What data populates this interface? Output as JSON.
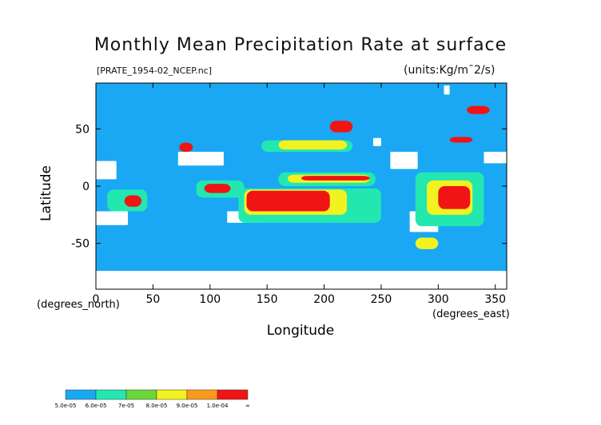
{
  "chart_data": {
    "type": "heatmap",
    "title": "Monthly Mean Precipitation Rate at surface",
    "subtitle_file": "[PRATE_1954-02_NCEP.nc]",
    "units": "(units:Kg/m¯2/s)",
    "xlabel": "Longitude",
    "ylabel": "Latitude",
    "x_unit": "(degrees_east)",
    "y_unit": "(degrees_north)",
    "xlim": [
      0,
      360
    ],
    "ylim": [
      -90,
      90
    ],
    "x_ticks": [
      0,
      50,
      100,
      150,
      200,
      250,
      300,
      350
    ],
    "y_ticks": [
      -50,
      0,
      50
    ],
    "colorbar": {
      "levels": [
        "5.0e-05",
        "6.0e-05",
        "7e-05",
        "8.0e-05",
        "9.0e-05",
        "1.0e-04",
        "∞"
      ],
      "colors": [
        "#1aa8f5",
        "#22e8b0",
        "#6ad63a",
        "#f2f221",
        "#fb9a1a",
        "#f01414"
      ]
    },
    "background_color": "#1aa8f5",
    "regions": [
      {
        "level": "missing",
        "lon": [
          0,
          360
        ],
        "lat": [
          -90,
          -74
        ]
      },
      {
        "level": "missing",
        "lon": [
          0,
          18
        ],
        "lat": [
          6,
          22
        ]
      },
      {
        "level": "missing",
        "lon": [
          0,
          28
        ],
        "lat": [
          -22,
          -34
        ]
      },
      {
        "level": "missing",
        "lon": [
          72,
          112
        ],
        "lat": [
          18,
          30
        ]
      },
      {
        "level": "missing",
        "lon": [
          115,
          148
        ],
        "lat": [
          -22,
          -32
        ]
      },
      {
        "level": "missing",
        "lon": [
          258,
          282
        ],
        "lat": [
          15,
          30
        ]
      },
      {
        "level": "missing",
        "lon": [
          340,
          360
        ],
        "lat": [
          20,
          30
        ]
      },
      {
        "level": "missing",
        "lon": [
          243,
          250
        ],
        "lat": [
          35,
          42
        ]
      },
      {
        "level": "missing",
        "lon": [
          275,
          300
        ],
        "lat": [
          -22,
          -40
        ]
      },
      {
        "level": "missing",
        "lon": [
          305,
          310
        ],
        "lat": [
          80,
          88
        ]
      },
      {
        "level": "low",
        "lon": [
          160,
          245
        ],
        "lat": [
          0,
          12
        ]
      },
      {
        "level": "mid",
        "lon": [
          168,
          240
        ],
        "lat": [
          3,
          10
        ]
      },
      {
        "level": "high",
        "lon": [
          180,
          240
        ],
        "lat": [
          5,
          9
        ]
      },
      {
        "level": "low",
        "lon": [
          125,
          250
        ],
        "lat": [
          -2,
          -32
        ]
      },
      {
        "level": "mid",
        "lon": [
          130,
          220
        ],
        "lat": [
          -3,
          -25
        ]
      },
      {
        "level": "high",
        "lon": [
          132,
          205
        ],
        "lat": [
          -4,
          -22
        ]
      },
      {
        "level": "low",
        "lon": [
          88,
          130
        ],
        "lat": [
          5,
          -10
        ]
      },
      {
        "level": "high",
        "lon": [
          95,
          118
        ],
        "lat": [
          2,
          -6
        ]
      },
      {
        "level": "low",
        "lon": [
          280,
          340
        ],
        "lat": [
          12,
          -35
        ]
      },
      {
        "level": "mid",
        "lon": [
          290,
          330
        ],
        "lat": [
          5,
          -25
        ]
      },
      {
        "level": "high",
        "lon": [
          300,
          328
        ],
        "lat": [
          0,
          -20
        ]
      },
      {
        "level": "low",
        "lon": [
          10,
          45
        ],
        "lat": [
          -3,
          -22
        ]
      },
      {
        "level": "high",
        "lon": [
          25,
          40
        ],
        "lat": [
          -8,
          -18
        ]
      },
      {
        "level": "low",
        "lon": [
          145,
          225
        ],
        "lat": [
          40,
          30
        ]
      },
      {
        "level": "mid",
        "lon": [
          160,
          220
        ],
        "lat": [
          40,
          32
        ]
      },
      {
        "level": "high",
        "lon": [
          205,
          225
        ],
        "lat": [
          57,
          47
        ]
      },
      {
        "level": "high",
        "lon": [
          310,
          330
        ],
        "lat": [
          43,
          38
        ]
      },
      {
        "level": "high",
        "lon": [
          325,
          345
        ],
        "lat": [
          70,
          63
        ]
      },
      {
        "level": "mid",
        "lon": [
          280,
          300
        ],
        "lat": [
          -45,
          -55
        ]
      },
      {
        "level": "high",
        "lon": [
          73,
          85
        ],
        "lat": [
          38,
          30
        ]
      }
    ]
  }
}
